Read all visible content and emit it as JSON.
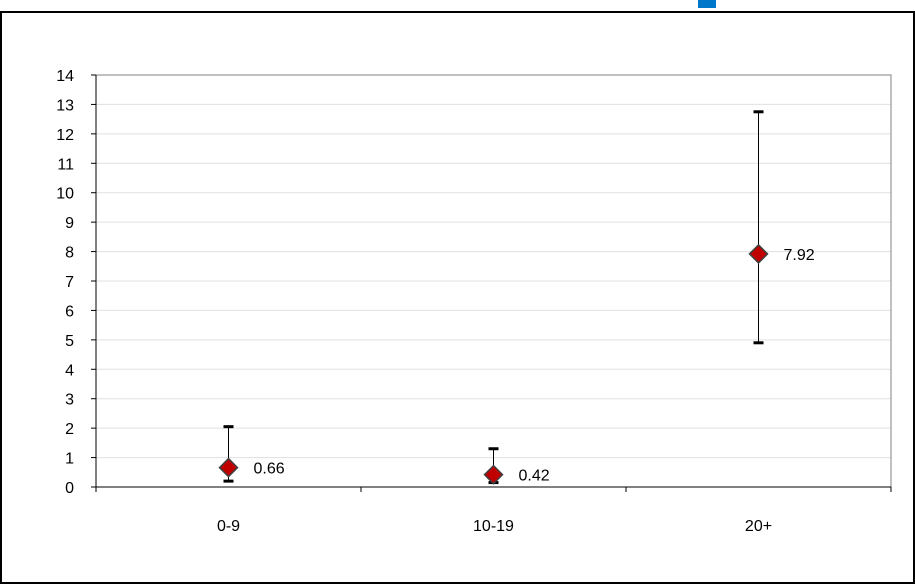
{
  "colors": {
    "background": "#ffffff",
    "border": "#000000",
    "plot_border": "#808080",
    "gridline": "#e0e0e0",
    "marker_fill": "#c00000",
    "marker_stroke": "#404040",
    "error_bar": "#000000",
    "accent": "#0077c8"
  },
  "chart_data": {
    "type": "scatter",
    "title": "",
    "xlabel": "",
    "ylabel": "",
    "categories": [
      "0-9",
      "10-19",
      "20+"
    ],
    "series": [
      {
        "values": [
          0.66,
          0.42,
          7.92
        ],
        "lower": [
          0.2,
          0.15,
          4.9
        ],
        "upper": [
          2.05,
          1.3,
          12.75
        ],
        "data_labels": [
          "0.66",
          "0.42",
          "7.92"
        ],
        "marker": "diamond"
      }
    ],
    "ylim": [
      0,
      14
    ],
    "yticks": [
      0,
      1,
      2,
      3,
      4,
      5,
      6,
      7,
      8,
      9,
      10,
      11,
      12,
      13,
      14
    ],
    "grid": true,
    "legend": "none"
  }
}
